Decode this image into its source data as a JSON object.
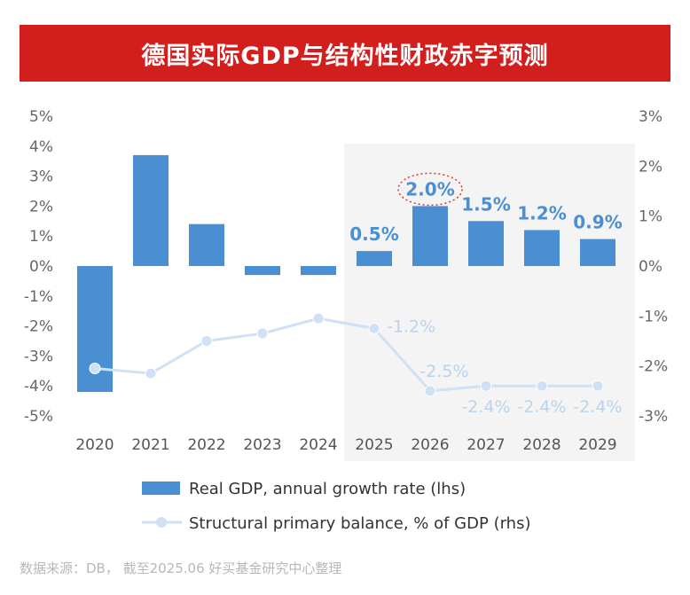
{
  "title": "德国实际GDP与结构性财政赤字预测",
  "footer": "数据来源：DB， 截至2025.06 好买基金研究中心整理",
  "colors": {
    "title_bg": "#d21f1e",
    "bar": "#4a8fd2",
    "line": "#cfe1f4",
    "line_label": "#b9d3ee",
    "bar_label": "#4a8fd2",
    "forecast_bg": "#f4f4f4",
    "highlight": "#e03030"
  },
  "chart_data": {
    "type": "bar+line",
    "title": "德国实际GDP与结构性财政赤字预测",
    "categories": [
      "2020",
      "2021",
      "2022",
      "2023",
      "2024",
      "2025",
      "2026",
      "2027",
      "2028",
      "2029"
    ],
    "forecast_start": "2025",
    "left_axis": {
      "ylim": [
        -5,
        5
      ],
      "ticks": [
        "5%",
        "4%",
        "3%",
        "2%",
        "1%",
        "0%",
        "-1%",
        "-2%",
        "-3%",
        "-4%",
        "-5%"
      ]
    },
    "right_axis": {
      "ylim": [
        -3,
        3
      ],
      "ticks": [
        "3%",
        "2%",
        "1%",
        "0%",
        "-1%",
        "-2%",
        "-3%"
      ]
    },
    "series": [
      {
        "name": "Real GDP, annual growth rate (lhs)",
        "type": "bar",
        "axis": "left",
        "values": [
          -4.2,
          3.7,
          1.4,
          -0.3,
          -0.3,
          0.5,
          2.0,
          1.5,
          1.2,
          0.9
        ],
        "labels": [
          null,
          null,
          null,
          null,
          null,
          "0.5%",
          "2.0%",
          "1.5%",
          "1.2%",
          "0.9%"
        ]
      },
      {
        "name": "Structural primary balance, % of GDP (rhs)",
        "type": "line",
        "axis": "right",
        "values": [
          -2.05,
          -2.15,
          -1.5,
          -1.35,
          -1.05,
          -1.25,
          -2.5,
          -2.4,
          -2.4,
          -2.4
        ],
        "labels": [
          null,
          null,
          null,
          null,
          null,
          "-1.2%",
          "-2.5%",
          "-2.4%",
          "-2.4%",
          "-2.4%"
        ]
      }
    ],
    "legend": [
      "Real GDP, annual growth rate (lhs)",
      "Structural primary balance, % of GDP (rhs)"
    ],
    "legend_placement": "bottom",
    "highlighted_label": "2026"
  }
}
